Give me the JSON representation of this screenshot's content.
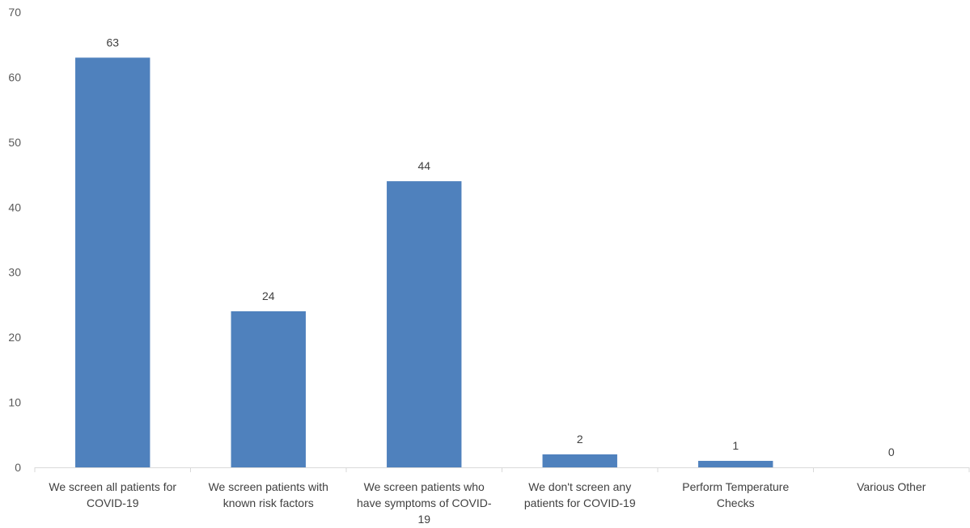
{
  "chart_data": {
    "type": "bar",
    "title": "",
    "xlabel": "",
    "ylabel": "",
    "ylim": [
      0,
      70
    ],
    "yticks": [
      0,
      10,
      20,
      30,
      40,
      50,
      60,
      70
    ],
    "grid": false,
    "legend": "none",
    "bar_color": "#4F81BD",
    "categories": [
      [
        "We screen all patients for",
        "COVID-19"
      ],
      [
        "We screen patients with",
        "known risk factors"
      ],
      [
        "We screen patients who",
        "have symptoms of COVID-",
        "19"
      ],
      [
        "We don't screen any",
        "patients for COVID-19"
      ],
      [
        "Perform Temperature",
        "Checks"
      ],
      [
        "Various Other"
      ]
    ],
    "values": [
      63,
      24,
      44,
      2,
      1,
      0
    ]
  }
}
